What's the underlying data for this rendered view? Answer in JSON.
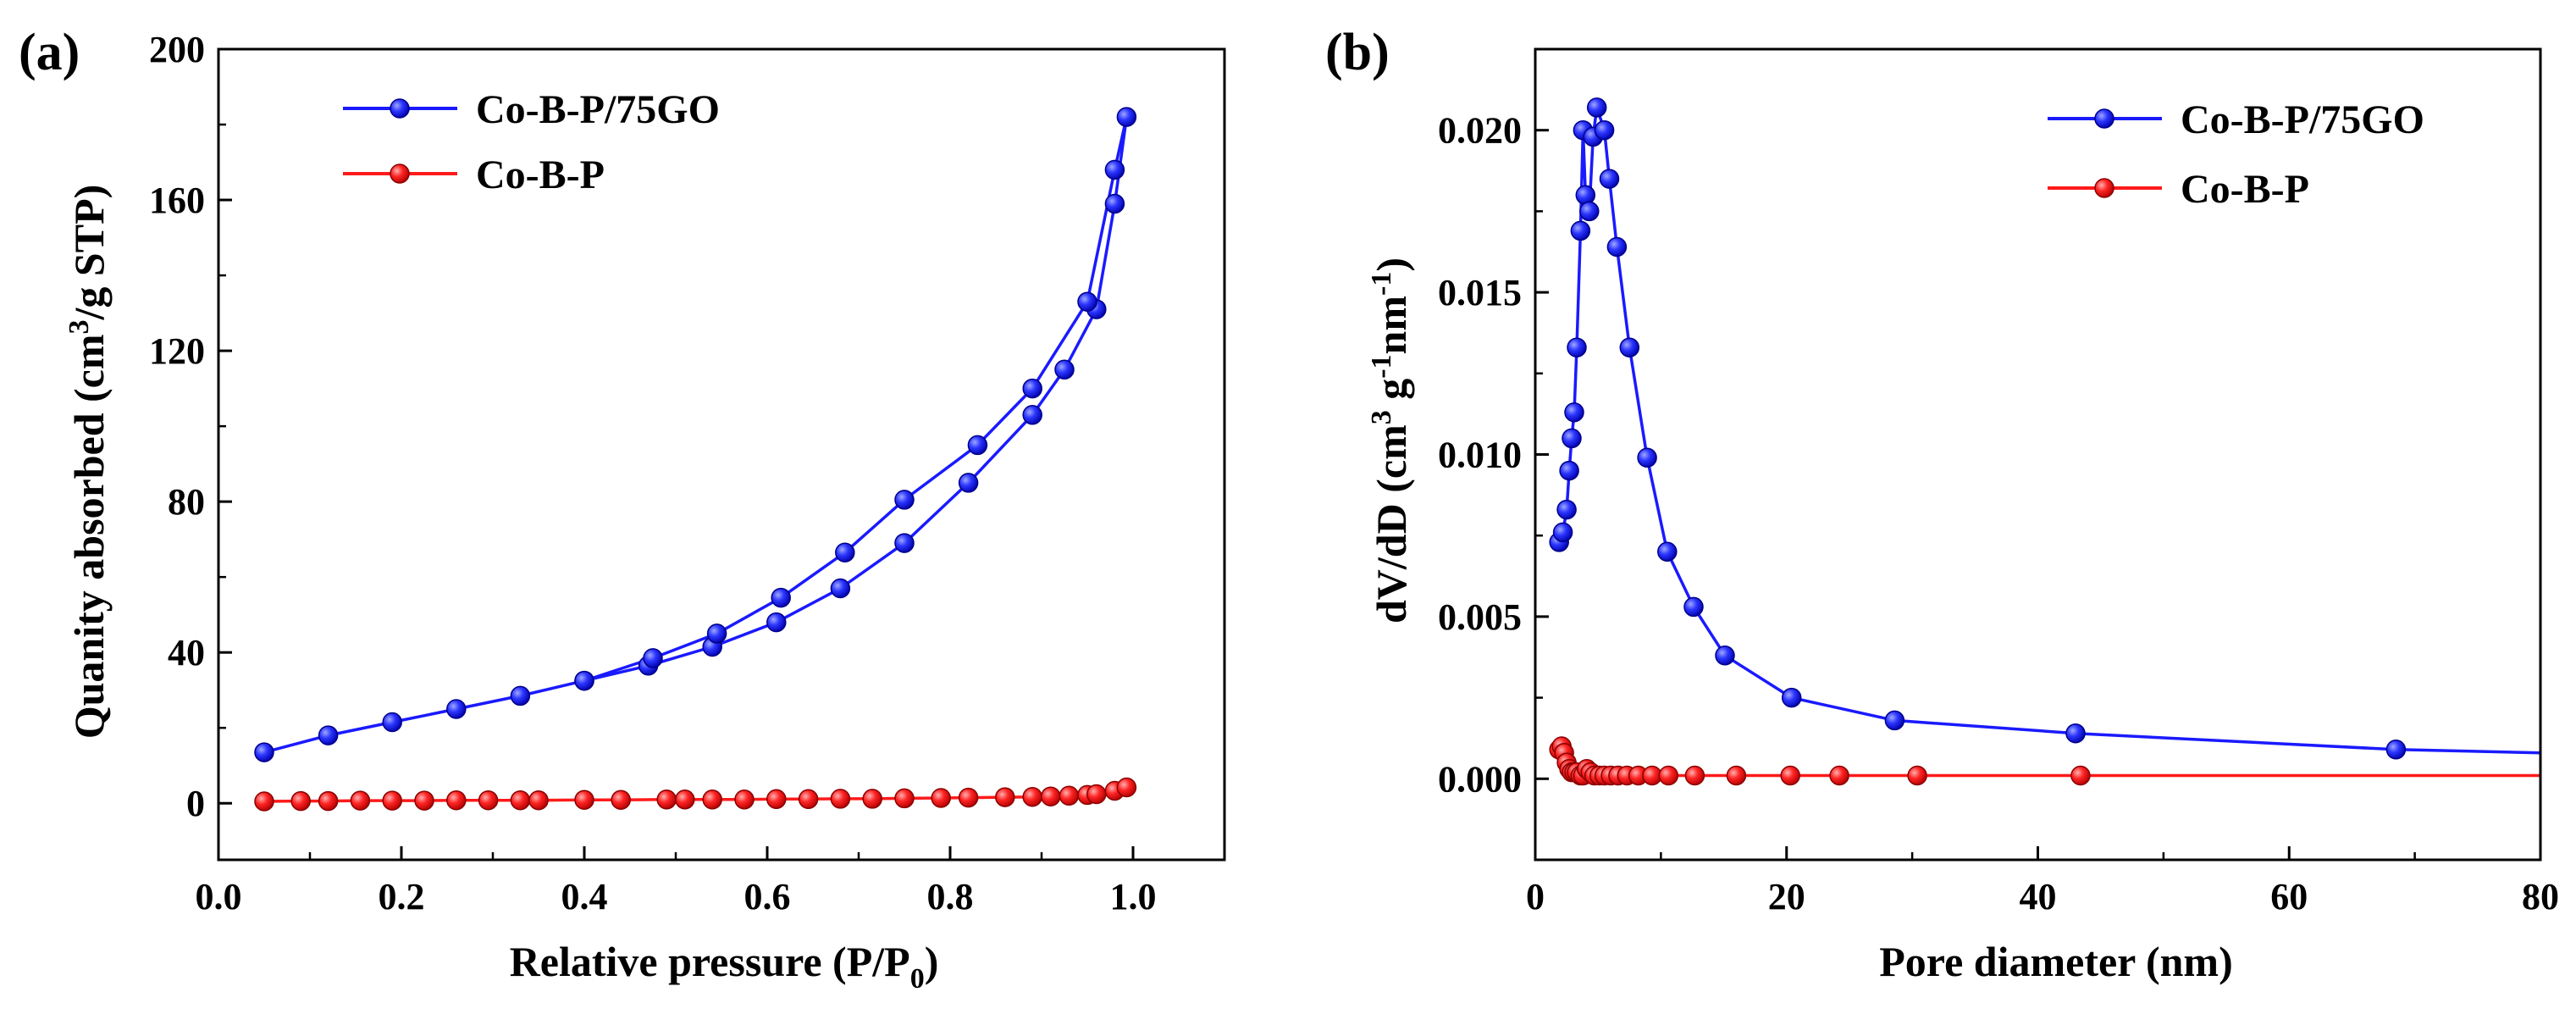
{
  "colors": {
    "blue": "#1a1aff",
    "red": "#ff1a1a",
    "axis": "#000000"
  },
  "chart_data": [
    {
      "type": "line",
      "panel_label": "(a)",
      "xlabel": "Relative pressure (P/P",
      "xlabel_sub": "0",
      "xlabel_tail": ")",
      "ylabel": "Quanity absorbed (cm",
      "ylabel_sup": "3",
      "ylabel_tail": "/g STP)",
      "xlim": [
        0.0,
        1.1
      ],
      "ylim": [
        -15,
        200
      ],
      "xticks": [
        0.0,
        0.2,
        0.4,
        0.6,
        0.8,
        1.0
      ],
      "xtick_labels": [
        "0.0",
        "0.2",
        "0.4",
        "0.6",
        "0.8",
        "1.0"
      ],
      "yticks": [
        0,
        40,
        80,
        120,
        160,
        200
      ],
      "ytick_labels": [
        "0",
        "40",
        "80",
        "120",
        "160",
        "200"
      ],
      "legend_position": "top-left",
      "series": [
        {
          "name": "Co-B-P/75GO",
          "color": "#1a1aff",
          "adsorption": [
            [
              0.05,
              13.5
            ],
            [
              0.12,
              18
            ],
            [
              0.19,
              21.5
            ],
            [
              0.26,
              25
            ],
            [
              0.33,
              28.5
            ],
            [
              0.4,
              32.5
            ],
            [
              0.47,
              36.5
            ],
            [
              0.54,
              41.5
            ],
            [
              0.61,
              48
            ],
            [
              0.68,
              57
            ],
            [
              0.75,
              69
            ],
            [
              0.82,
              85
            ],
            [
              0.89,
              103
            ],
            [
              0.925,
              115
            ],
            [
              0.96,
              131
            ],
            [
              0.98,
              159
            ],
            [
              0.993,
              182
            ]
          ],
          "desorption": [
            [
              0.993,
              182
            ],
            [
              0.98,
              168
            ],
            [
              0.95,
              133
            ],
            [
              0.89,
              110
            ],
            [
              0.83,
              95
            ],
            [
              0.75,
              80.5
            ],
            [
              0.685,
              66.5
            ],
            [
              0.615,
              54.5
            ],
            [
              0.545,
              45
            ],
            [
              0.475,
              38.5
            ],
            [
              0.4,
              32.5
            ]
          ]
        },
        {
          "name": "Co-B-P",
          "color": "#ff1a1a",
          "points": [
            [
              0.05,
              0.5
            ],
            [
              0.09,
              0.6
            ],
            [
              0.12,
              0.6
            ],
            [
              0.155,
              0.7
            ],
            [
              0.19,
              0.7
            ],
            [
              0.225,
              0.7
            ],
            [
              0.26,
              0.8
            ],
            [
              0.295,
              0.8
            ],
            [
              0.33,
              0.8
            ],
            [
              0.35,
              0.8
            ],
            [
              0.4,
              0.9
            ],
            [
              0.44,
              0.9
            ],
            [
              0.49,
              1.0
            ],
            [
              0.51,
              1.0
            ],
            [
              0.54,
              1.0
            ],
            [
              0.575,
              1.0
            ],
            [
              0.61,
              1.1
            ],
            [
              0.645,
              1.1
            ],
            [
              0.68,
              1.2
            ],
            [
              0.715,
              1.2
            ],
            [
              0.75,
              1.3
            ],
            [
              0.79,
              1.4
            ],
            [
              0.82,
              1.5
            ],
            [
              0.86,
              1.6
            ],
            [
              0.89,
              1.7
            ],
            [
              0.91,
              1.8
            ],
            [
              0.93,
              2.0
            ],
            [
              0.95,
              2.2
            ],
            [
              0.96,
              2.4
            ],
            [
              0.98,
              3.3
            ],
            [
              0.993,
              4.2
            ]
          ]
        }
      ]
    },
    {
      "type": "line",
      "panel_label": "(b)",
      "xlabel": "Pore diameter (nm)",
      "ylabel_parts": [
        "dV/dD (cm",
        "3",
        " g",
        "-1",
        "nm",
        "-1",
        ")"
      ],
      "xlim": [
        0,
        80
      ],
      "ylim": [
        -0.0025,
        0.0225
      ],
      "xticks": [
        0,
        20,
        40,
        60,
        80
      ],
      "xtick_labels": [
        "0",
        "20",
        "40",
        "60",
        "80"
      ],
      "yticks": [
        0.0,
        0.005,
        0.01,
        0.015,
        0.02
      ],
      "ytick_labels": [
        "0.000",
        "0.005",
        "0.010",
        "0.015",
        "0.020"
      ],
      "legend_position": "top-right",
      "series": [
        {
          "name": "Co-B-P/75GO",
          "color": "#1a1aff",
          "points": [
            [
              1.9,
              0.0073
            ],
            [
              2.2,
              0.0076
            ],
            [
              2.5,
              0.0083
            ],
            [
              2.7,
              0.0095
            ],
            [
              2.9,
              0.0105
            ],
            [
              3.1,
              0.0113
            ],
            [
              3.3,
              0.0133
            ],
            [
              3.6,
              0.0169
            ],
            [
              3.8,
              0.02
            ],
            [
              4.0,
              0.018
            ],
            [
              4.3,
              0.0175
            ],
            [
              4.6,
              0.0198
            ],
            [
              4.9,
              0.0207
            ],
            [
              5.5,
              0.02
            ],
            [
              5.9,
              0.0185
            ],
            [
              6.5,
              0.0164
            ],
            [
              7.5,
              0.0133
            ],
            [
              8.9,
              0.0099
            ],
            [
              10.5,
              0.007
            ],
            [
              12.6,
              0.0053
            ],
            [
              15.1,
              0.0038
            ],
            [
              20.4,
              0.0025
            ],
            [
              28.6,
              0.0018
            ],
            [
              43.0,
              0.0014
            ],
            [
              68.5,
              0.0009
            ],
            [
              80.0,
              0.0008
            ]
          ],
          "markers_count": 25
        },
        {
          "name": "Co-B-P",
          "color": "#ff1a1a",
          "points": [
            [
              1.9,
              0.0009
            ],
            [
              2.1,
              0.001
            ],
            [
              2.3,
              0.0008
            ],
            [
              2.5,
              0.0005
            ],
            [
              2.7,
              0.0003
            ],
            [
              2.9,
              0.0002
            ],
            [
              3.1,
              0.0002
            ],
            [
              3.3,
              0.0002
            ],
            [
              3.6,
              0.0001
            ],
            [
              3.8,
              0.0001
            ],
            [
              4.1,
              0.0003
            ],
            [
              4.4,
              0.0002
            ],
            [
              4.7,
              0.0001
            ],
            [
              5.1,
              0.0001
            ],
            [
              5.5,
              0.0001
            ],
            [
              6.0,
              0.0001
            ],
            [
              6.6,
              0.0001
            ],
            [
              7.3,
              0.0001
            ],
            [
              8.2,
              0.0001
            ],
            [
              9.3,
              0.0001
            ],
            [
              10.6,
              0.0001
            ],
            [
              12.7,
              0.0001
            ],
            [
              16.0,
              0.0001
            ],
            [
              20.3,
              0.0001
            ],
            [
              24.2,
              0.0001
            ],
            [
              30.4,
              0.0001
            ],
            [
              43.4,
              0.0001
            ],
            [
              80.0,
              0.0001
            ]
          ],
          "markers_count": 27
        }
      ]
    }
  ]
}
